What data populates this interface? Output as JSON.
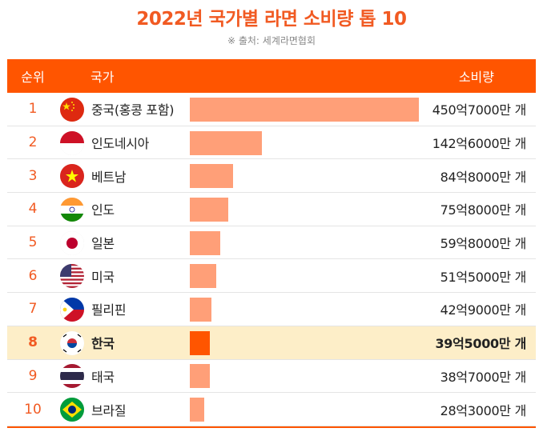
{
  "title": "2022년 국가별 라면 소비량 톱 10",
  "source": "※ 출처: 세계라면협회",
  "colors": {
    "accent": "#ff5500",
    "title": "#f15a22",
    "bar": "#ff9f78",
    "bar_highlight": "#ff5500",
    "row_highlight": "#fdeec8",
    "text": "#222222",
    "rank_text": "#f15a22"
  },
  "header": {
    "rank": "순위",
    "country": "국가",
    "amount": "소비량"
  },
  "chart_data": {
    "type": "bar",
    "title": "2022년 국가별 라면 소비량 톱 10",
    "unit": "개",
    "xlim": [
      0,
      457000
    ],
    "rows": [
      {
        "rank": "1",
        "country": "중국(홍콩 포함)",
        "value": 450700,
        "label": "450억7000만 개",
        "flag": "china-flag-icon",
        "highlight": false
      },
      {
        "rank": "2",
        "country": "인도네시아",
        "value": 142600,
        "label": "142억6000만 개",
        "flag": "indonesia-flag-icon",
        "highlight": false
      },
      {
        "rank": "3",
        "country": "베트남",
        "value": 84800,
        "label": "84억8000만 개",
        "flag": "vietnam-flag-icon",
        "highlight": false
      },
      {
        "rank": "4",
        "country": "인도",
        "value": 75800,
        "label": "75억8000만 개",
        "flag": "india-flag-icon",
        "highlight": false
      },
      {
        "rank": "5",
        "country": "일본",
        "value": 59800,
        "label": "59억8000만 개",
        "flag": "japan-flag-icon",
        "highlight": false
      },
      {
        "rank": "6",
        "country": "미국",
        "value": 51500,
        "label": "51억5000만 개",
        "flag": "usa-flag-icon",
        "highlight": false
      },
      {
        "rank": "7",
        "country": "필리핀",
        "value": 42900,
        "label": "42억9000만 개",
        "flag": "philippines-flag-icon",
        "highlight": false
      },
      {
        "rank": "8",
        "country": "한국",
        "value": 39500,
        "label": "39억5000만 개",
        "flag": "korea-flag-icon",
        "highlight": true
      },
      {
        "rank": "9",
        "country": "태국",
        "value": 38700,
        "label": "38억7000만 개",
        "flag": "thailand-flag-icon",
        "highlight": false
      },
      {
        "rank": "10",
        "country": "브라질",
        "value": 28300,
        "label": "28억3000만 개",
        "flag": "brazil-flag-icon",
        "highlight": false
      }
    ]
  }
}
